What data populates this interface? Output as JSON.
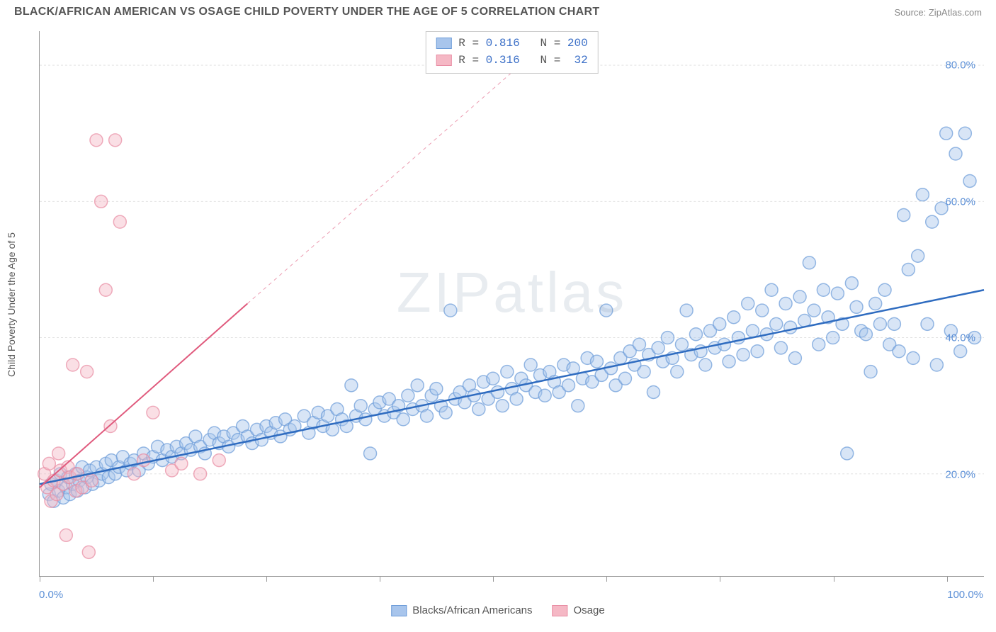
{
  "header": {
    "title": "BLACK/AFRICAN AMERICAN VS OSAGE CHILD POVERTY UNDER THE AGE OF 5 CORRELATION CHART",
    "source": "Source: ZipAtlas.com"
  },
  "watermark": "ZIPatlas",
  "chart": {
    "type": "scatter",
    "ylabel": "Child Poverty Under the Age of 5",
    "xlim": [
      0,
      100
    ],
    "ylim": [
      5,
      85
    ],
    "ytick_values": [
      20,
      40,
      60,
      80
    ],
    "ytick_labels": [
      "20.0%",
      "40.0%",
      "60.0%",
      "80.0%"
    ],
    "xtick_positions": [
      0,
      12,
      24,
      36,
      48,
      60,
      72,
      84,
      96
    ],
    "xtick_label_left": "0.0%",
    "xtick_label_right": "100.0%",
    "background_color": "#ffffff",
    "grid_color": "#dddddd",
    "marker_radius": 9,
    "marker_opacity": 0.45,
    "marker_stroke_width": 1.5,
    "series": [
      {
        "name": "Blacks/African Americans",
        "color_fill": "#a8c5ec",
        "color_stroke": "#6b9bd8",
        "line_color": "#2f6cc0",
        "line_width": 2.5,
        "r_label": "R =",
        "r_value": "0.816",
        "n_label": "N =",
        "n_value": "200",
        "trend": {
          "x1": 0,
          "y1": 18.5,
          "x2": 100,
          "y2": 47
        },
        "points": [
          [
            1,
            17
          ],
          [
            1.2,
            18.5
          ],
          [
            1.5,
            16
          ],
          [
            1.8,
            19
          ],
          [
            2,
            17.5
          ],
          [
            2.2,
            20
          ],
          [
            2.5,
            16.5
          ],
          [
            2.8,
            18
          ],
          [
            3,
            19.5
          ],
          [
            3.2,
            17
          ],
          [
            3.5,
            18.5
          ],
          [
            3.8,
            20
          ],
          [
            4,
            17.5
          ],
          [
            4.2,
            19
          ],
          [
            4.5,
            21
          ],
          [
            4.8,
            18
          ],
          [
            5,
            19.5
          ],
          [
            5.3,
            20.5
          ],
          [
            5.6,
            18.5
          ],
          [
            6,
            21
          ],
          [
            6.3,
            19
          ],
          [
            6.6,
            20
          ],
          [
            7,
            21.5
          ],
          [
            7.3,
            19.5
          ],
          [
            7.6,
            22
          ],
          [
            8,
            20
          ],
          [
            8.4,
            21
          ],
          [
            8.8,
            22.5
          ],
          [
            9.2,
            20.5
          ],
          [
            9.6,
            21.5
          ],
          [
            10,
            22
          ],
          [
            10.5,
            20.5
          ],
          [
            11,
            23
          ],
          [
            11.5,
            21.5
          ],
          [
            12,
            22.5
          ],
          [
            12.5,
            24
          ],
          [
            13,
            22
          ],
          [
            13.5,
            23.5
          ],
          [
            14,
            22.5
          ],
          [
            14.5,
            24
          ],
          [
            15,
            23
          ],
          [
            15.5,
            24.5
          ],
          [
            16,
            23.5
          ],
          [
            16.5,
            25.5
          ],
          [
            17,
            24
          ],
          [
            17.5,
            23
          ],
          [
            18,
            25
          ],
          [
            18.5,
            26
          ],
          [
            19,
            24.5
          ],
          [
            19.5,
            25.5
          ],
          [
            20,
            24
          ],
          [
            20.5,
            26
          ],
          [
            21,
            25
          ],
          [
            21.5,
            27
          ],
          [
            22,
            25.5
          ],
          [
            22.5,
            24.5
          ],
          [
            23,
            26.5
          ],
          [
            23.5,
            25
          ],
          [
            24,
            27
          ],
          [
            24.5,
            26
          ],
          [
            25,
            27.5
          ],
          [
            25.5,
            25.5
          ],
          [
            26,
            28
          ],
          [
            26.5,
            26.5
          ],
          [
            27,
            27
          ],
          [
            28,
            28.5
          ],
          [
            28.5,
            26
          ],
          [
            29,
            27.5
          ],
          [
            29.5,
            29
          ],
          [
            30,
            27
          ],
          [
            30.5,
            28.5
          ],
          [
            31,
            26.5
          ],
          [
            31.5,
            29.5
          ],
          [
            32,
            28
          ],
          [
            32.5,
            27
          ],
          [
            33,
            33
          ],
          [
            33.5,
            28.5
          ],
          [
            34,
            30
          ],
          [
            34.5,
            28
          ],
          [
            35,
            23
          ],
          [
            35.5,
            29.5
          ],
          [
            36,
            30.5
          ],
          [
            36.5,
            28.5
          ],
          [
            37,
            31
          ],
          [
            37.5,
            29
          ],
          [
            38,
            30
          ],
          [
            38.5,
            28
          ],
          [
            39,
            31.5
          ],
          [
            39.5,
            29.5
          ],
          [
            40,
            33
          ],
          [
            40.5,
            30
          ],
          [
            41,
            28.5
          ],
          [
            41.5,
            31.5
          ],
          [
            42,
            32.5
          ],
          [
            42.5,
            30
          ],
          [
            43,
            29
          ],
          [
            43.5,
            44
          ],
          [
            44,
            31
          ],
          [
            44.5,
            32
          ],
          [
            45,
            30.5
          ],
          [
            45.5,
            33
          ],
          [
            46,
            31.5
          ],
          [
            46.5,
            29.5
          ],
          [
            47,
            33.5
          ],
          [
            47.5,
            31
          ],
          [
            48,
            34
          ],
          [
            48.5,
            32
          ],
          [
            49,
            30
          ],
          [
            49.5,
            35
          ],
          [
            50,
            32.5
          ],
          [
            50.5,
            31
          ],
          [
            51,
            34
          ],
          [
            51.5,
            33
          ],
          [
            52,
            36
          ],
          [
            52.5,
            32
          ],
          [
            53,
            34.5
          ],
          [
            53.5,
            31.5
          ],
          [
            54,
            35
          ],
          [
            54.5,
            33.5
          ],
          [
            55,
            32
          ],
          [
            55.5,
            36
          ],
          [
            56,
            33
          ],
          [
            56.5,
            35.5
          ],
          [
            57,
            30
          ],
          [
            57.5,
            34
          ],
          [
            58,
            37
          ],
          [
            58.5,
            33.5
          ],
          [
            59,
            36.5
          ],
          [
            59.5,
            34.5
          ],
          [
            60,
            44
          ],
          [
            60.5,
            35.5
          ],
          [
            61,
            33
          ],
          [
            61.5,
            37
          ],
          [
            62,
            34
          ],
          [
            62.5,
            38
          ],
          [
            63,
            36
          ],
          [
            63.5,
            39
          ],
          [
            64,
            35
          ],
          [
            64.5,
            37.5
          ],
          [
            65,
            32
          ],
          [
            65.5,
            38.5
          ],
          [
            66,
            36.5
          ],
          [
            66.5,
            40
          ],
          [
            67,
            37
          ],
          [
            67.5,
            35
          ],
          [
            68,
            39
          ],
          [
            68.5,
            44
          ],
          [
            69,
            37.5
          ],
          [
            69.5,
            40.5
          ],
          [
            70,
            38
          ],
          [
            70.5,
            36
          ],
          [
            71,
            41
          ],
          [
            71.5,
            38.5
          ],
          [
            72,
            42
          ],
          [
            72.5,
            39
          ],
          [
            73,
            36.5
          ],
          [
            73.5,
            43
          ],
          [
            74,
            40
          ],
          [
            74.5,
            37.5
          ],
          [
            75,
            45
          ],
          [
            75.5,
            41
          ],
          [
            76,
            38
          ],
          [
            76.5,
            44
          ],
          [
            77,
            40.5
          ],
          [
            77.5,
            47
          ],
          [
            78,
            42
          ],
          [
            78.5,
            38.5
          ],
          [
            79,
            45
          ],
          [
            79.5,
            41.5
          ],
          [
            80,
            37
          ],
          [
            80.5,
            46
          ],
          [
            81,
            42.5
          ],
          [
            81.5,
            51
          ],
          [
            82,
            44
          ],
          [
            82.5,
            39
          ],
          [
            83,
            47
          ],
          [
            83.5,
            43
          ],
          [
            84,
            40
          ],
          [
            84.5,
            46.5
          ],
          [
            85,
            42
          ],
          [
            85.5,
            23
          ],
          [
            86,
            48
          ],
          [
            86.5,
            44.5
          ],
          [
            87,
            41
          ],
          [
            87.5,
            40.5
          ],
          [
            88,
            35
          ],
          [
            88.5,
            45
          ],
          [
            89,
            42
          ],
          [
            89.5,
            47
          ],
          [
            90,
            39
          ],
          [
            90.5,
            42
          ],
          [
            91,
            38
          ],
          [
            91.5,
            58
          ],
          [
            92,
            50
          ],
          [
            92.5,
            37
          ],
          [
            93,
            52
          ],
          [
            93.5,
            61
          ],
          [
            94,
            42
          ],
          [
            94.5,
            57
          ],
          [
            95,
            36
          ],
          [
            95.5,
            59
          ],
          [
            96,
            70
          ],
          [
            96.5,
            41
          ],
          [
            97,
            67
          ],
          [
            97.5,
            38
          ],
          [
            98,
            70
          ],
          [
            98.5,
            63
          ],
          [
            99,
            40
          ]
        ]
      },
      {
        "name": "Osage",
        "color_fill": "#f5b8c5",
        "color_stroke": "#e88ca3",
        "line_color": "#e05a7d",
        "line_width": 2,
        "r_label": "R =",
        "r_value": "0.316",
        "n_label": "N =",
        "n_value": " 32",
        "trend": {
          "x1": 0,
          "y1": 18,
          "x2": 22,
          "y2": 45
        },
        "trend_dashed": {
          "x1": 22,
          "y1": 45,
          "x2": 55,
          "y2": 85
        },
        "points": [
          [
            0.5,
            20
          ],
          [
            0.8,
            18
          ],
          [
            1,
            21.5
          ],
          [
            1.2,
            16
          ],
          [
            1.5,
            19
          ],
          [
            1.8,
            17
          ],
          [
            2,
            23
          ],
          [
            2.2,
            20.5
          ],
          [
            2.5,
            18.5
          ],
          [
            2.8,
            11
          ],
          [
            3,
            21
          ],
          [
            3.2,
            19.5
          ],
          [
            3.5,
            36
          ],
          [
            3.8,
            17.5
          ],
          [
            4,
            20
          ],
          [
            4.5,
            18
          ],
          [
            5,
            35
          ],
          [
            5.2,
            8.5
          ],
          [
            5.5,
            19
          ],
          [
            6,
            69
          ],
          [
            6.5,
            60
          ],
          [
            7,
            47
          ],
          [
            7.5,
            27
          ],
          [
            8,
            69
          ],
          [
            8.5,
            57
          ],
          [
            10,
            20
          ],
          [
            11,
            22
          ],
          [
            12,
            29
          ],
          [
            14,
            20.5
          ],
          [
            15,
            21.5
          ],
          [
            17,
            20
          ],
          [
            19,
            22
          ]
        ]
      }
    ]
  },
  "bottom_legend": {
    "series1": "Blacks/African Americans",
    "series2": "Osage"
  }
}
